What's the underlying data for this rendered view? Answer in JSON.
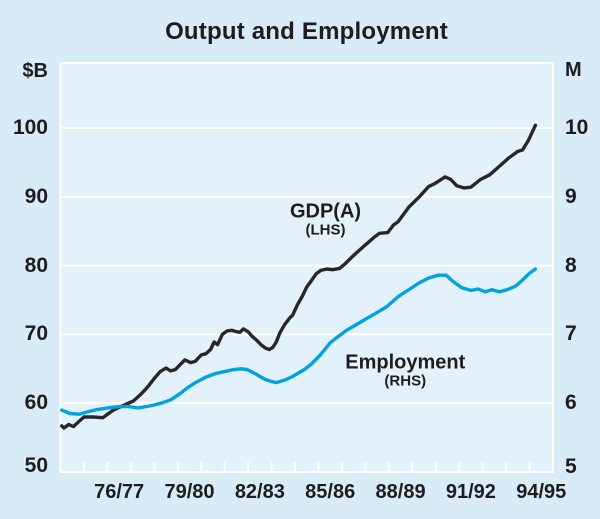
{
  "page": {
    "title": "Output and Employment"
  },
  "chart_data": {
    "type": "line",
    "title": "Output and Employment",
    "grid": true,
    "colors": {
      "background": "#d8ebf6",
      "plot_background": "#e3f1fa",
      "grid": "#ffffff",
      "text": "#1d1d1f",
      "gdp_line": "#26262b",
      "employment_line": "#00a3e0"
    },
    "left_axis": {
      "label": "$B",
      "ticks": [
        50,
        60,
        70,
        80,
        90,
        100
      ],
      "grid_values": [
        60,
        70,
        80,
        90,
        100
      ],
      "range": [
        50,
        109.45
      ]
    },
    "right_axis": {
      "label": "M",
      "ticks": [
        5,
        6,
        7,
        8,
        9,
        10
      ],
      "range": [
        5,
        10.945
      ]
    },
    "x_axis": {
      "range": [
        1974.5,
        1995.5
      ],
      "minor_tick_start": 1975.5,
      "minor_tick_end": 1994.5,
      "minor_tick_step": 1,
      "labels": [
        {
          "text": "76/77",
          "year": 1977
        },
        {
          "text": "79/80",
          "year": 1980
        },
        {
          "text": "82/83",
          "year": 1983
        },
        {
          "text": "85/86",
          "year": 1986
        },
        {
          "text": "88/89",
          "year": 1989
        },
        {
          "text": "91/92",
          "year": 1992
        },
        {
          "text": "94/95",
          "year": 1995
        }
      ]
    },
    "series": [
      {
        "name": "GDP(A)",
        "axis": "lhs",
        "unit": "$B",
        "color": "#26262b",
        "points": [
          [
            1974.55,
            56.7
          ],
          [
            1974.65,
            56.4
          ],
          [
            1974.85,
            56.9
          ],
          [
            1975.05,
            56.6
          ],
          [
            1975.3,
            57.4
          ],
          [
            1975.5,
            58.0
          ],
          [
            1975.9,
            58.0
          ],
          [
            1976.3,
            57.9
          ],
          [
            1976.75,
            59.0
          ],
          [
            1977.2,
            59.7
          ],
          [
            1977.6,
            60.3
          ],
          [
            1977.9,
            61.2
          ],
          [
            1978.2,
            62.3
          ],
          [
            1978.5,
            63.6
          ],
          [
            1978.75,
            64.6
          ],
          [
            1979.0,
            65.1
          ],
          [
            1979.2,
            64.7
          ],
          [
            1979.4,
            64.9
          ],
          [
            1979.6,
            65.6
          ],
          [
            1979.8,
            66.3
          ],
          [
            1980.05,
            65.9
          ],
          [
            1980.25,
            66.1
          ],
          [
            1980.5,
            67.0
          ],
          [
            1980.7,
            67.2
          ],
          [
            1980.9,
            67.8
          ],
          [
            1981.05,
            68.9
          ],
          [
            1981.2,
            68.5
          ],
          [
            1981.4,
            70.0
          ],
          [
            1981.6,
            70.5
          ],
          [
            1981.8,
            70.6
          ],
          [
            1982.0,
            70.4
          ],
          [
            1982.15,
            70.3
          ],
          [
            1982.3,
            70.8
          ],
          [
            1982.5,
            70.4
          ],
          [
            1982.65,
            69.8
          ],
          [
            1982.85,
            69.2
          ],
          [
            1983.05,
            68.5
          ],
          [
            1983.25,
            68.0
          ],
          [
            1983.4,
            67.8
          ],
          [
            1983.55,
            68.1
          ],
          [
            1983.7,
            68.9
          ],
          [
            1983.85,
            70.2
          ],
          [
            1984.05,
            71.4
          ],
          [
            1984.25,
            72.3
          ],
          [
            1984.4,
            72.8
          ],
          [
            1984.6,
            74.3
          ],
          [
            1984.8,
            75.5
          ],
          [
            1985.0,
            76.9
          ],
          [
            1985.2,
            77.8
          ],
          [
            1985.4,
            78.8
          ],
          [
            1985.6,
            79.3
          ],
          [
            1985.85,
            79.5
          ],
          [
            1986.1,
            79.4
          ],
          [
            1986.4,
            79.6
          ],
          [
            1986.65,
            80.3
          ],
          [
            1987.0,
            81.5
          ],
          [
            1987.4,
            82.7
          ],
          [
            1987.9,
            84.2
          ],
          [
            1988.1,
            84.7
          ],
          [
            1988.45,
            84.8
          ],
          [
            1988.7,
            85.9
          ],
          [
            1988.9,
            86.4
          ],
          [
            1989.35,
            88.5
          ],
          [
            1989.8,
            90.0
          ],
          [
            1990.2,
            91.5
          ],
          [
            1990.45,
            91.9
          ],
          [
            1990.9,
            92.9
          ],
          [
            1991.15,
            92.5
          ],
          [
            1991.4,
            91.6
          ],
          [
            1991.7,
            91.3
          ],
          [
            1992.0,
            91.4
          ],
          [
            1992.4,
            92.5
          ],
          [
            1992.8,
            93.2
          ],
          [
            1993.2,
            94.4
          ],
          [
            1993.6,
            95.6
          ],
          [
            1994.0,
            96.6
          ],
          [
            1994.2,
            96.8
          ],
          [
            1994.45,
            98.2
          ],
          [
            1994.6,
            99.3
          ],
          [
            1994.75,
            100.4
          ]
        ]
      },
      {
        "name": "Employment",
        "axis": "rhs",
        "unit": "M",
        "color": "#00a3e0",
        "points": [
          [
            1974.55,
            5.9
          ],
          [
            1974.9,
            5.85
          ],
          [
            1975.3,
            5.84
          ],
          [
            1975.7,
            5.88
          ],
          [
            1976.1,
            5.91
          ],
          [
            1976.5,
            5.93
          ],
          [
            1977.0,
            5.95
          ],
          [
            1977.4,
            5.95
          ],
          [
            1977.8,
            5.93
          ],
          [
            1978.3,
            5.96
          ],
          [
            1978.8,
            6.0
          ],
          [
            1979.2,
            6.05
          ],
          [
            1979.6,
            6.14
          ],
          [
            1979.9,
            6.22
          ],
          [
            1980.25,
            6.3
          ],
          [
            1980.7,
            6.38
          ],
          [
            1981.1,
            6.43
          ],
          [
            1981.5,
            6.46
          ],
          [
            1981.9,
            6.49
          ],
          [
            1982.2,
            6.5
          ],
          [
            1982.45,
            6.49
          ],
          [
            1982.8,
            6.43
          ],
          [
            1983.2,
            6.35
          ],
          [
            1983.45,
            6.32
          ],
          [
            1983.7,
            6.3
          ],
          [
            1984.1,
            6.34
          ],
          [
            1984.4,
            6.39
          ],
          [
            1984.9,
            6.49
          ],
          [
            1985.2,
            6.57
          ],
          [
            1985.6,
            6.71
          ],
          [
            1986.0,
            6.88
          ],
          [
            1986.3,
            6.96
          ],
          [
            1986.7,
            7.06
          ],
          [
            1987.3,
            7.18
          ],
          [
            1987.9,
            7.3
          ],
          [
            1988.4,
            7.4
          ],
          [
            1988.9,
            7.55
          ],
          [
            1989.4,
            7.66
          ],
          [
            1989.8,
            7.75
          ],
          [
            1990.2,
            7.82
          ],
          [
            1990.6,
            7.86
          ],
          [
            1990.95,
            7.86
          ],
          [
            1991.2,
            7.78
          ],
          [
            1991.6,
            7.68
          ],
          [
            1992.0,
            7.64
          ],
          [
            1992.3,
            7.66
          ],
          [
            1992.6,
            7.62
          ],
          [
            1992.9,
            7.65
          ],
          [
            1993.2,
            7.62
          ],
          [
            1993.55,
            7.65
          ],
          [
            1993.9,
            7.7
          ],
          [
            1994.2,
            7.79
          ],
          [
            1994.5,
            7.89
          ],
          [
            1994.75,
            7.95
          ]
        ]
      }
    ],
    "annotations": [
      {
        "text": "GDP(A)",
        "subtext": "(LHS)",
        "anchor": {
          "year": 1985.8,
          "value": 86.5,
          "axis": "lhs"
        }
      },
      {
        "text": "Employment",
        "subtext": "(RHS)",
        "anchor": {
          "year": 1989.2,
          "value": 6.46,
          "axis": "rhs"
        }
      }
    ]
  }
}
